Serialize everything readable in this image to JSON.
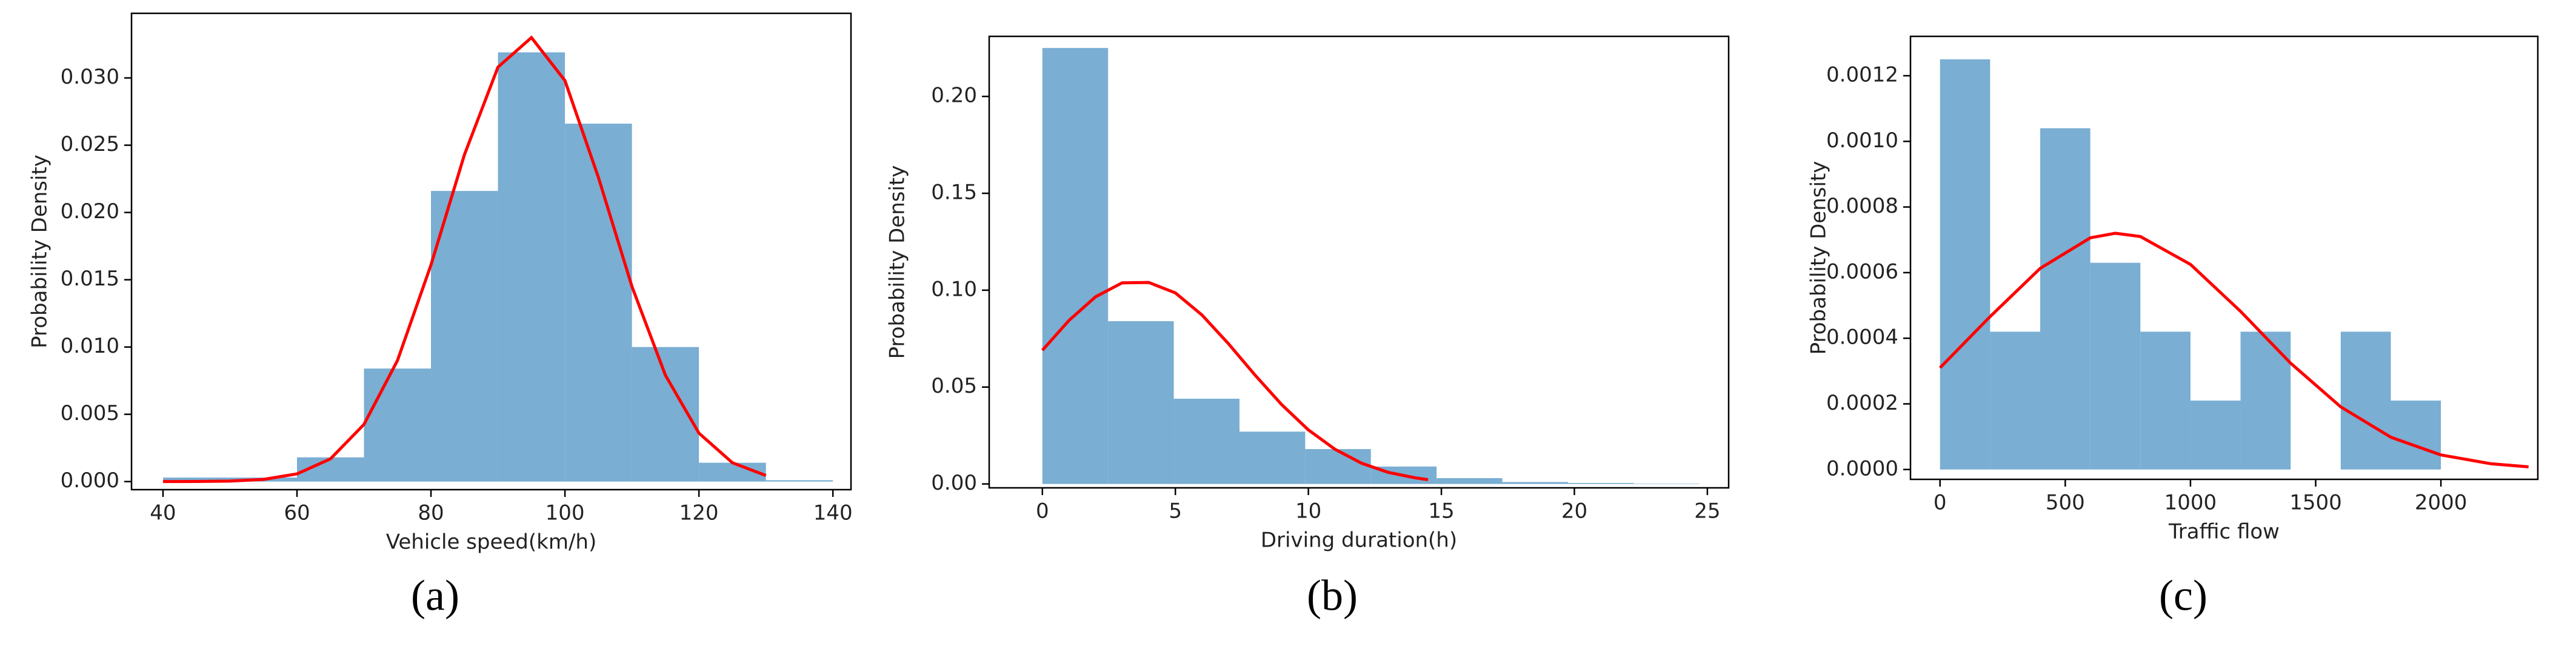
{
  "chart_data": [
    {
      "type": "histogram",
      "caption": "(a)",
      "xlabel": "Vehicle speed(km/h)",
      "ylabel": "Probability Density",
      "bins": [
        40,
        50,
        60,
        70,
        80,
        90,
        100,
        110,
        120,
        130,
        140
      ],
      "values": [
        0.0003,
        0.0003,
        0.0018,
        0.0084,
        0.0216,
        0.0319,
        0.0266,
        0.01,
        0.0014,
        0.0001
      ],
      "color": "#7aaed3",
      "curve": {
        "color": "#ff0000",
        "x": [
          40,
          45,
          50,
          55,
          60,
          65,
          70,
          75,
          80,
          85,
          90,
          95,
          100,
          105,
          110,
          115,
          120,
          125,
          130
        ],
        "values": [
          1.3e-06,
          7.6e-06,
          3.8e-05,
          0.00016,
          0.00057,
          0.00169,
          0.00425,
          0.009,
          0.0161,
          0.0243,
          0.0308,
          0.033,
          0.0298,
          0.0226,
          0.0145,
          0.0079,
          0.0036,
          0.0014,
          0.00045
        ]
      },
      "xlim": [
        35.3,
        142.7
      ],
      "ylim": [
        -0.0006,
        0.0348
      ],
      "xticks": [
        40,
        60,
        80,
        100,
        120,
        140
      ],
      "yticks": [
        {
          "value": 0,
          "label": "0.000"
        },
        0.005,
        {
          "value": 0.01,
          "label": "0.010"
        },
        0.015,
        {
          "value": 0.02,
          "label": "0.020"
        },
        0.025,
        {
          "value": 0.03,
          "label": "0.030"
        }
      ]
    },
    {
      "type": "histogram",
      "caption": "(b)",
      "xlabel": "Driving duration(h)",
      "ylabel": "Probability Density",
      "bins": [
        0,
        2.47,
        4.94,
        7.41,
        9.88,
        12.35,
        14.82,
        17.29,
        19.76,
        22.23,
        24.7
      ],
      "values": [
        0.225,
        0.084,
        0.044,
        0.027,
        0.018,
        0.009,
        0.003,
        0.001,
        0.0005,
        0.0002
      ],
      "color": "#7aaed3",
      "curve": {
        "color": "#ff0000",
        "x": [
          0,
          1,
          2,
          3,
          4,
          5,
          6,
          7,
          8,
          9,
          10,
          11,
          12,
          13,
          14,
          14.5
        ],
        "values": [
          0.069,
          0.0844,
          0.0966,
          0.1038,
          0.104,
          0.0986,
          0.0872,
          0.0723,
          0.0561,
          0.0409,
          0.0279,
          0.0179,
          0.0107,
          0.006,
          0.0032,
          0.0022
        ]
      },
      "xlim": [
        -2.0,
        25.8
      ],
      "ylim": [
        -0.002,
        0.231
      ],
      "xticks": [
        0,
        5,
        10,
        15,
        20,
        25
      ],
      "yticks": [
        {
          "value": 0,
          "label": "0.00"
        },
        0.05,
        {
          "value": 0.1,
          "label": "0.10"
        },
        0.15,
        {
          "value": 0.2,
          "label": "0.20"
        }
      ]
    },
    {
      "type": "histogram",
      "caption": "(c)",
      "xlabel": "Traffic flow",
      "ylabel": "Probability Density",
      "bins": [
        0,
        200,
        400,
        600,
        800,
        1000,
        1200,
        1400,
        1600,
        1800,
        2000
      ],
      "values": [
        0.00125,
        0.00042,
        0.00104,
        0.00063,
        0.00042,
        0.00021,
        0.00042,
        0,
        0.00042,
        0.00021
      ],
      "color": "#7aaed3",
      "curve": {
        "color": "#ff0000",
        "x": [
          0,
          200,
          400,
          600,
          700,
          800,
          1000,
          1200,
          1400,
          1600,
          1800,
          2000,
          2200,
          2350
        ],
        "values": [
          0.00031,
          0.000466,
          0.000613,
          0.000706,
          0.00072,
          0.00071,
          0.000625,
          0.000482,
          0.000324,
          0.000191,
          9.85e-05,
          4.44e-05,
          1.75e-05,
          8e-06
        ]
      },
      "xlim": [
        -118,
        2387
      ],
      "ylim": [
        -3e-05,
        0.00132
      ],
      "xticks": [
        0,
        500,
        1000,
        1500,
        2000
      ],
      "yticks": [
        {
          "value": 0,
          "label": "0.0000"
        },
        0.0002,
        0.0004,
        0.0006,
        0.0008,
        {
          "value": 0.001,
          "label": "0.0010"
        },
        0.0012
      ]
    }
  ]
}
